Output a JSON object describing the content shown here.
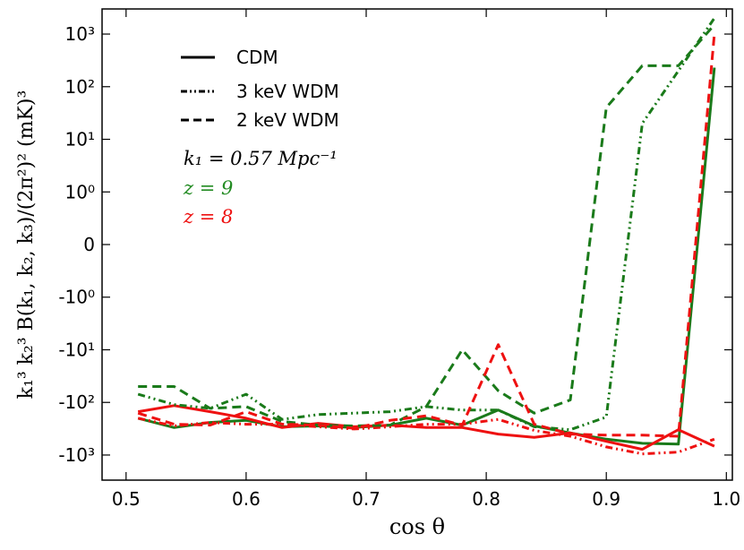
{
  "chart_data": {
    "type": "line",
    "title": "",
    "xlabel": "cos θ",
    "ylabel": "k₁³ k₂³ B(k₁, k₂, k₃)/(2π²)² (mK)³",
    "yscale": "symlog",
    "xlim": [
      0.48,
      1.005
    ],
    "ylim": [
      -3000,
      3000
    ],
    "x_ticks": [
      {
        "value": 0.5,
        "label": "0.5"
      },
      {
        "value": 0.6,
        "label": "0.6"
      },
      {
        "value": 0.7,
        "label": "0.7"
      },
      {
        "value": 0.8,
        "label": "0.8"
      },
      {
        "value": 0.9,
        "label": "0.9"
      },
      {
        "value": 1.0,
        "label": "1.0"
      }
    ],
    "y_ticks": [
      {
        "value": 1000,
        "label": "10³"
      },
      {
        "value": 100,
        "label": "10²"
      },
      {
        "value": 10,
        "label": "10¹"
      },
      {
        "value": 1,
        "label": "10⁰"
      },
      {
        "value": 0,
        "label": "0"
      },
      {
        "value": -1,
        "label": "-10⁰"
      },
      {
        "value": -10,
        "label": "-10¹"
      },
      {
        "value": -100,
        "label": "-10²"
      },
      {
        "value": -1000,
        "label": "-10³"
      }
    ],
    "legend": {
      "location": "top-left",
      "entries": [
        {
          "label": "CDM",
          "style": "solid"
        },
        {
          "label": "3 keV WDM",
          "style": "dashdotdot"
        },
        {
          "label": "2 keV WDM",
          "style": "dashed"
        }
      ]
    },
    "annotations": [
      {
        "text": "k₁ = 0.57 Mpc⁻¹",
        "color": "#000000"
      },
      {
        "text": "z = 9",
        "color": "#228b22"
      },
      {
        "text": "z = 8",
        "color": "#ee1111"
      }
    ],
    "colors": {
      "z9": "#1a7a1a",
      "z8": "#ee1111"
    },
    "series": [
      {
        "name": "CDM z=9",
        "model": "CDM",
        "redshift": "z=9",
        "style": "solid",
        "x": [
          0.51,
          0.54,
          0.57,
          0.6,
          0.63,
          0.66,
          0.69,
          0.72,
          0.75,
          0.78,
          0.81,
          0.84,
          0.87,
          0.9,
          0.93,
          0.96,
          0.99
        ],
        "y": [
          -200,
          -300,
          -240,
          -220,
          -290,
          -280,
          -300,
          -270,
          -200,
          -270,
          -140,
          -280,
          -380,
          -500,
          -600,
          -620,
          230
        ]
      },
      {
        "name": "CDM z=8",
        "model": "CDM",
        "redshift": "z=8",
        "style": "solid",
        "x": [
          0.51,
          0.54,
          0.57,
          0.6,
          0.63,
          0.66,
          0.69,
          0.72,
          0.75,
          0.78,
          0.81,
          0.84,
          0.87,
          0.9,
          0.93,
          0.96,
          0.99
        ],
        "y": [
          -150,
          -115,
          -150,
          -200,
          -300,
          -250,
          -290,
          -270,
          -300,
          -300,
          -400,
          -460,
          -380,
          -550,
          -780,
          -330,
          -680
        ]
      },
      {
        "name": "3 keV WDM z=9",
        "model": "3 keV WDM",
        "redshift": "z=9",
        "style": "dashdotdot",
        "x": [
          0.51,
          0.54,
          0.57,
          0.6,
          0.63,
          0.66,
          0.69,
          0.72,
          0.75,
          0.78,
          0.81,
          0.84,
          0.87,
          0.9,
          0.93,
          0.96,
          0.99
        ],
        "y": [
          -70,
          -110,
          -130,
          -70,
          -210,
          -170,
          -160,
          -150,
          -120,
          -140,
          -140,
          -290,
          -330,
          -190,
          20,
          200,
          2000
        ]
      },
      {
        "name": "3 keV WDM z=8",
        "model": "3 keV WDM",
        "redshift": "z=8",
        "style": "dashdotdot",
        "x": [
          0.51,
          0.54,
          0.57,
          0.6,
          0.63,
          0.66,
          0.69,
          0.72,
          0.75,
          0.78,
          0.81,
          0.84,
          0.87,
          0.9,
          0.93,
          0.96,
          0.99
        ],
        "y": [
          -200,
          -280,
          -240,
          -260,
          -260,
          -290,
          -320,
          -290,
          -260,
          -260,
          -210,
          -340,
          -440,
          -700,
          -950,
          -880,
          -500
        ]
      },
      {
        "name": "2 keV WDM z=9",
        "model": "2 keV WDM",
        "redshift": "z=9",
        "style": "dashed",
        "x": [
          0.51,
          0.54,
          0.57,
          0.6,
          0.63,
          0.66,
          0.69,
          0.72,
          0.75,
          0.78,
          0.81,
          0.84,
          0.87,
          0.9,
          0.93,
          0.96,
          0.99
        ],
        "y": [
          -50,
          -50,
          -130,
          -120,
          -230,
          -270,
          -280,
          -270,
          -120,
          -10,
          -60,
          -160,
          -90,
          40,
          250,
          250,
          1500
        ]
      },
      {
        "name": "2 keV WDM z=8",
        "model": "2 keV WDM",
        "redshift": "z=8",
        "style": "dashed",
        "x": [
          0.51,
          0.54,
          0.57,
          0.6,
          0.63,
          0.66,
          0.69,
          0.72,
          0.75,
          0.78,
          0.81,
          0.84,
          0.87,
          0.9,
          0.93,
          0.96,
          0.99
        ],
        "y": [
          -160,
          -260,
          -270,
          -150,
          -260,
          -270,
          -310,
          -220,
          -180,
          -270,
          -8,
          -260,
          -400,
          -420,
          -420,
          -440,
          1000
        ]
      }
    ]
  }
}
